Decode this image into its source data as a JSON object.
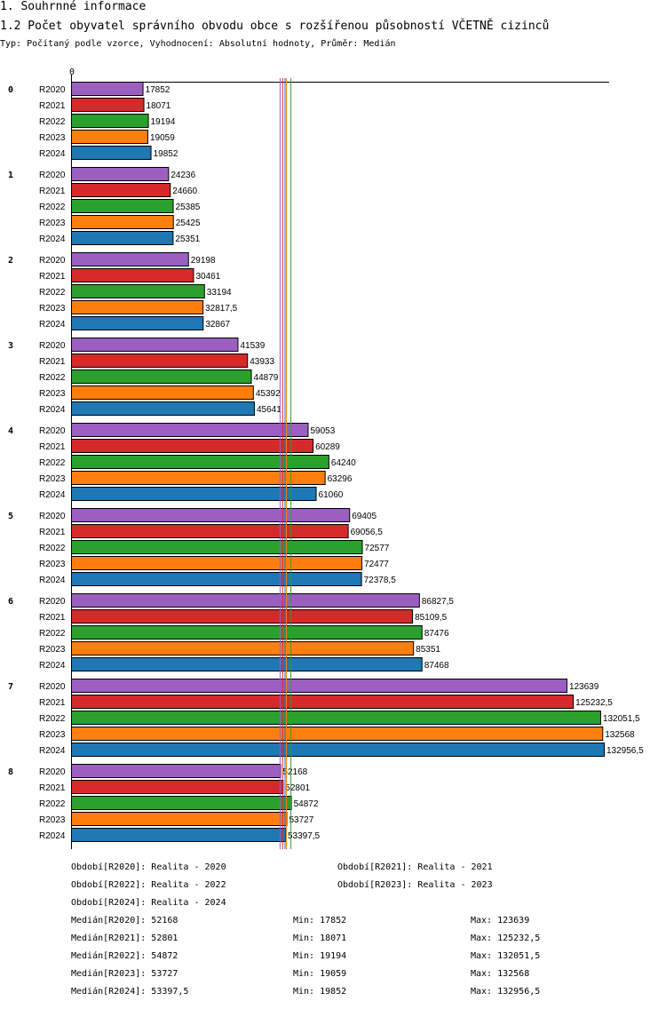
{
  "section_title": "1. Souhrnné informace",
  "chart_title": "1.2 Počet obyvatel správního obvodu obce s rozšířenou působností VČETNĚ cizinců",
  "chart_subtitle": "Typ: Počítaný podle vzorce, Vyhodnocení: Absolutní hodnoty, Průměr: Medián",
  "colors": {
    "R2020": "#9b5fc0",
    "R2021": "#d62a2a",
    "R2022": "#2ca02c",
    "R2023": "#ff7f0e",
    "R2024": "#1f77b4"
  },
  "chart_data": {
    "type": "bar",
    "orientation": "horizontal",
    "axis_zero_label": "0",
    "xlim": [
      0,
      132956.5
    ],
    "categories": [
      "0",
      "1",
      "2",
      "3",
      "4",
      "5",
      "6",
      "7",
      "8"
    ],
    "series": [
      {
        "name": "R2020",
        "values": [
          17852,
          24236,
          29198,
          41539,
          59053,
          69405,
          86827.5,
          123639,
          52168
        ],
        "labels": [
          "17852",
          "24236",
          "29198",
          "41539",
          "59053",
          "69405",
          "86827,5",
          "123639",
          "52168"
        ],
        "median": 52168
      },
      {
        "name": "R2021",
        "values": [
          18071,
          24660,
          30461,
          43933,
          60289,
          69056.5,
          85109.5,
          125232.5,
          52801
        ],
        "labels": [
          "18071",
          "24660",
          "30461",
          "43933",
          "60289",
          "69056,5",
          "85109,5",
          "125232,5",
          "52801"
        ],
        "median": 52801
      },
      {
        "name": "R2022",
        "values": [
          19194,
          25385,
          33194,
          44879,
          64240,
          72577,
          87476,
          132051.5,
          54872
        ],
        "labels": [
          "19194",
          "25385",
          "33194",
          "44879",
          "64240",
          "72577",
          "87476",
          "132051,5",
          "54872"
        ],
        "median": 54872
      },
      {
        "name": "R2023",
        "values": [
          19059,
          25425,
          32817.5,
          45392,
          63296,
          72477,
          85351,
          132568,
          53727
        ],
        "labels": [
          "19059",
          "25425",
          "32817,5",
          "45392",
          "63296",
          "72477",
          "85351",
          "132568",
          "53727"
        ],
        "median": 53727
      },
      {
        "name": "R2024",
        "values": [
          19852,
          25351,
          32867,
          45641,
          61060,
          72378.5,
          87468,
          132956.5,
          53397.5
        ],
        "labels": [
          "19852",
          "25351",
          "32867",
          "45641",
          "61060",
          "72378,5",
          "87468",
          "132956,5",
          "53397,5"
        ],
        "median": 53397.5
      }
    ]
  },
  "legend": {
    "periods": [
      {
        "text": "Období[R2020]: Realita - 2020"
      },
      {
        "text": "Období[R2021]: Realita - 2021"
      },
      {
        "text": "Období[R2022]: Realita - 2022"
      },
      {
        "text": "Období[R2023]: Realita - 2023"
      },
      {
        "text": "Období[R2024]: Realita - 2024"
      }
    ],
    "stats": [
      {
        "median": "Medián[R2020]: 52168",
        "min": "Min: 17852",
        "max": "Max: 123639"
      },
      {
        "median": "Medián[R2021]: 52801",
        "min": "Min: 18071",
        "max": "Max: 125232,5"
      },
      {
        "median": "Medián[R2022]: 54872",
        "min": "Min: 19194",
        "max": "Max: 132051,5"
      },
      {
        "median": "Medián[R2023]: 53727",
        "min": "Min: 19059",
        "max": "Max: 132568"
      },
      {
        "median": "Medián[R2024]: 53397,5",
        "min": "Min: 19852",
        "max": "Max: 132956,5"
      }
    ]
  }
}
